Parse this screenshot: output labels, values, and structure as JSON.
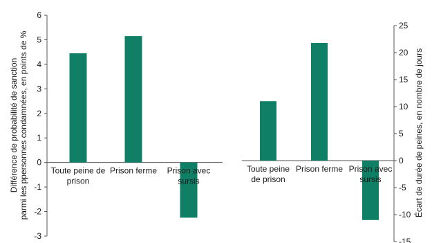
{
  "chart_data": [
    {
      "type": "bar",
      "categories": [
        "Toute peine de prison",
        "Prison ferme",
        "Prison avec sursis"
      ],
      "category_lines": [
        [
          "Toute peine de",
          "prison"
        ],
        [
          "Prison ferme"
        ],
        [
          "Prison avec",
          "sursis"
        ]
      ],
      "values": [
        4.45,
        5.15,
        -2.25
      ],
      "ylabel": "Différence de probabilité de sanction parmi les ppersonnes condamnées, en points de %",
      "ylabel_lines": [
        "Différence de probabilité de sanction",
        "parmi les ppersonnes condamnées, en points de %"
      ],
      "ylim": [
        -3,
        6
      ],
      "yticks": [
        -3,
        -2,
        -1,
        0,
        1,
        2,
        3,
        4,
        5,
        6
      ],
      "axis_side": "left",
      "grid": false,
      "bar_color": "#0f7f66"
    },
    {
      "type": "bar",
      "categories": [
        "Toute peine de prison",
        "Prison ferme",
        "Prison avec sursis"
      ],
      "category_lines": [
        [
          "Toute peine",
          "de prison"
        ],
        [
          "Prison ferme"
        ],
        [
          "Prison avec",
          "sursis"
        ]
      ],
      "values": [
        11,
        21.8,
        -11
      ],
      "ylabel": "Écart de durée de peines, en nombre de jours",
      "ylabel_lines": [
        "Écart de durée de peines, en nombre de jours"
      ],
      "ylim": [
        -15,
        25
      ],
      "yticks": [
        -15,
        -10,
        -5,
        0,
        5,
        10,
        15,
        20,
        25
      ],
      "axis_side": "right",
      "grid": false,
      "bar_color": "#0f7f66"
    }
  ]
}
